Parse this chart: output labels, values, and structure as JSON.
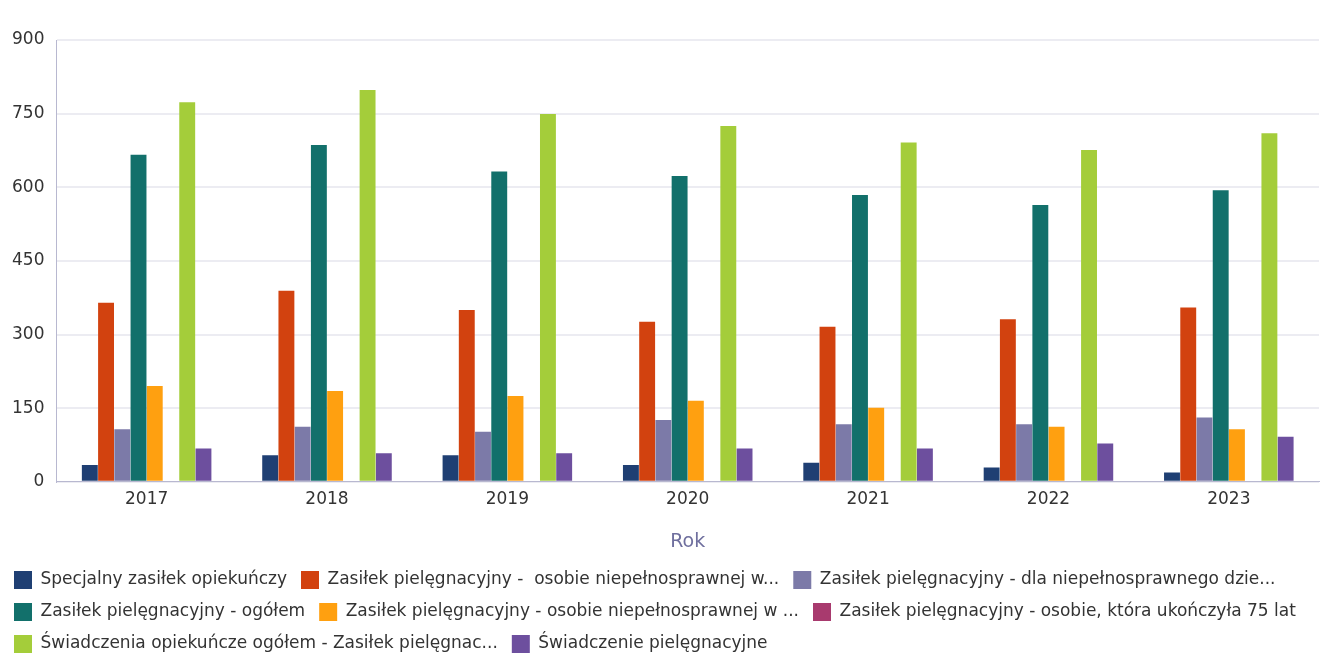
{
  "chart_data": {
    "type": "bar",
    "xlabel": "Rok",
    "categories": [
      "2017",
      "2018",
      "2019",
      "2020",
      "2021",
      "2022",
      "2023"
    ],
    "series": [
      {
        "name": "Specjalny zasiłek opiekuńczy",
        "color": "#1f3f73",
        "values": [
          34,
          54,
          54,
          34,
          39,
          29,
          19
        ]
      },
      {
        "name": "Zasiłek pielęgnacyjny -  osobie niepełnosprawnej w...",
        "color": "#d2420f",
        "values": [
          365,
          389,
          350,
          326,
          316,
          331,
          355
        ]
      },
      {
        "name": "Zasiłek pielęgnacyjny - dla niepełnosprawnego dzie...",
        "color": "#7c7aa8",
        "values": [
          107,
          112,
          102,
          126,
          117,
          117,
          131
        ]
      },
      {
        "name": "Zasiłek pielęgnacyjny - ogółem",
        "color": "#12706b",
        "values": [
          666,
          686,
          632,
          623,
          584,
          564,
          594
        ]
      },
      {
        "name": "Zasiłek pielęgnacyjny - osobie niepełnosprawnej w ...",
        "color": "#ffa010",
        "values": [
          195,
          185,
          175,
          165,
          151,
          112,
          107
        ]
      },
      {
        "name": "Zasiłek pielęgnacyjny - osobie, która ukończyła 75 lat",
        "color": "#a83a6e",
        "values": [
          null,
          null,
          null,
          null,
          null,
          null,
          null
        ]
      },
      {
        "name": "Świadczenia opiekuńcze ogółem - Zasiłek pielęgnac...",
        "color": "#a4cd3a",
        "values": [
          773,
          798,
          749,
          725,
          691,
          676,
          710
        ]
      },
      {
        "name": "Świadczenie pielęgnacyjne",
        "color": "#6d4f9e",
        "values": [
          68,
          58,
          58,
          68,
          68,
          78,
          92
        ]
      }
    ],
    "ylim": [
      0,
      900
    ],
    "yticks": [
      0,
      150,
      300,
      450,
      600,
      750,
      900
    ],
    "grid": "y",
    "legend": "bottom"
  }
}
